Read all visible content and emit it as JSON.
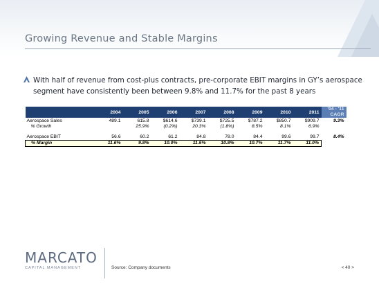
{
  "slide": {
    "title": "Growing Revenue and Stable Margins",
    "bullet": "With half of revenue from cost-plus contracts, pre-corporate EBIT margins in GY’s aerospace segment have consistently been between 9.8% and 11.7% for the past 8 years"
  },
  "table": {
    "years": [
      "2004",
      "2005",
      "2006",
      "2007",
      "2008",
      "2009",
      "2010",
      "2011"
    ],
    "cagr_header_line1": "'04 - '11",
    "cagr_header_line2": "CAGR",
    "rows": {
      "sales": {
        "label": "Aerospace Sales",
        "values": [
          "489.1",
          "615.8",
          "$614.6",
          "$739.1",
          "$725.5",
          "$787.2",
          "$850.7",
          "$909.7"
        ],
        "cagr": "9.3%"
      },
      "growth": {
        "label": "% Growth",
        "values": [
          "",
          "25.9%",
          "(0.2%)",
          "20.3%",
          "(1.8%)",
          "8.5%",
          "8.1%",
          "6.9%"
        ]
      },
      "ebit": {
        "label": "Aerospace EBIT",
        "values": [
          "56.6",
          "60.2",
          "61.2",
          "84.8",
          "78.0",
          "84.4",
          "99.6",
          "99.7"
        ],
        "cagr": "8.4%"
      },
      "margin": {
        "label": "% Margin",
        "values": [
          "11.6%",
          "9.8%",
          "10.0%",
          "11.5%",
          "10.8%",
          "10.7%",
          "11.7%",
          "11.0%"
        ]
      }
    }
  },
  "footer": {
    "logo_word": "MARCATO",
    "logo_sub": "CAPITAL MANAGEMENT",
    "source": "Source: Company documents",
    "page": "< 40 >"
  },
  "colors": {
    "header_band": "#1f3f73",
    "cagr_band": "#5b7fb5",
    "title": "#6a7684",
    "accent": "#4a6fa8"
  },
  "icons": [
    "bullet-triangle-icon",
    "marcato-logo-caret-icon"
  ]
}
